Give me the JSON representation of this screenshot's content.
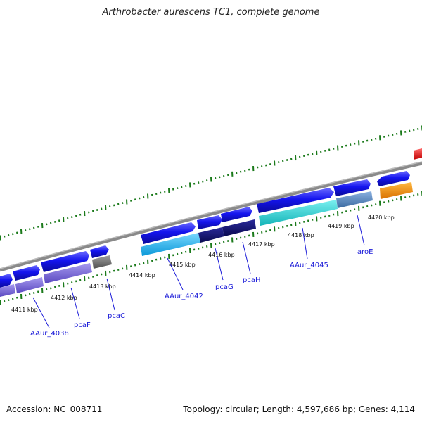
{
  "title": "Arthrobacter aurescens TC1, complete genome",
  "footer": {
    "accession": "Accession: NC_008711",
    "summary": "Topology: circular; Length: 4,597,686 bp; Genes: 4,114"
  },
  "map": {
    "kbp_labels": [
      "4411 kbp",
      "4412 kbp",
      "4413 kbp",
      "4414 kbp",
      "4415 kbp",
      "4416 kbp",
      "4417 kbp",
      "4418 kbp",
      "4419 kbp",
      "4420 kbp"
    ],
    "gene_labels": [
      "AAur_4038",
      "pcaF",
      "pcaC",
      "AAur_4042",
      "pcaG",
      "pcaH",
      "AAur_4045",
      "aroE"
    ],
    "colors": {
      "forward_gene": "#1010e8",
      "backbone": "#8a8a8a",
      "tick": "#1b7a1b",
      "label": "#1a1ad8",
      "red_gene": "#ee1111",
      "orange_feature": "#f08c00",
      "cds_lavender": "#7a68d8",
      "cds_light_blue": "#22b8f0",
      "cds_navy": "#141470",
      "cds_cyan": "#22cfd0",
      "cds_steel": "#5a88c0",
      "cds_gray": "#6c6c6c"
    }
  }
}
